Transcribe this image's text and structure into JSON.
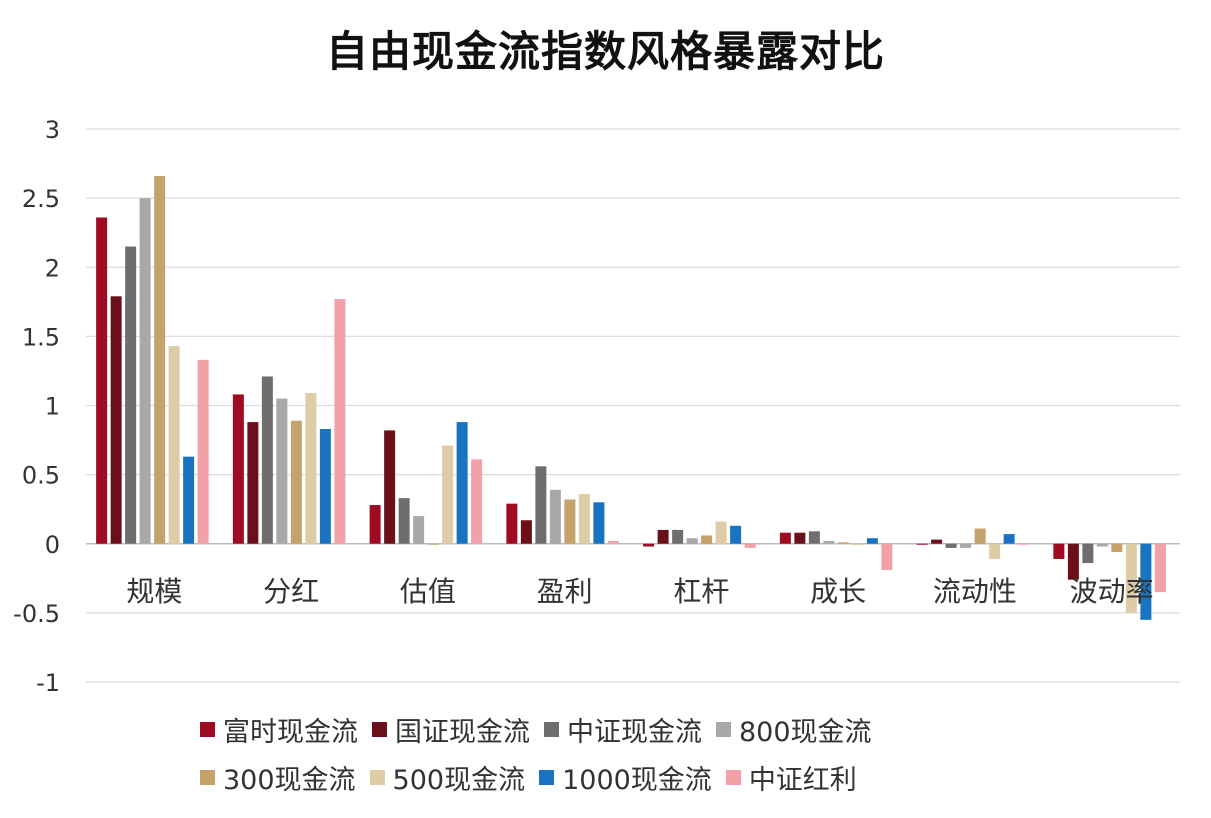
{
  "chart_data": {
    "type": "bar",
    "title": "自由现金流指数风格暴露对比",
    "xlabel": "",
    "ylabel": "",
    "ylim": [
      -1,
      3
    ],
    "yticks": [
      3,
      2.5,
      2,
      1.5,
      1,
      0.5,
      0,
      -0.5,
      -1
    ],
    "ytick_labels": [
      "3",
      "2.5",
      "2",
      "1.5",
      "1",
      "0.5",
      "0",
      "-0.5",
      "-1"
    ],
    "grid": true,
    "legend_position": "bottom",
    "categories": [
      "规模",
      "分红",
      "估值",
      "盈利",
      "杠杆",
      "成长",
      "流动性",
      "波动率"
    ],
    "series": [
      {
        "name": "富时现金流",
        "color": "#9e0b23",
        "values": [
          2.36,
          1.08,
          0.28,
          0.29,
          -0.02,
          0.08,
          0.0,
          -0.11
        ]
      },
      {
        "name": "国证现金流",
        "color": "#6b0f1a",
        "values": [
          1.79,
          0.88,
          0.82,
          0.17,
          0.1,
          0.08,
          0.03,
          -0.26
        ]
      },
      {
        "name": "中证现金流",
        "color": "#6e6e6e",
        "values": [
          2.15,
          1.21,
          0.33,
          0.56,
          0.1,
          0.09,
          -0.03,
          -0.14
        ]
      },
      {
        "name": "800现金流",
        "color": "#a8a8a8",
        "values": [
          2.5,
          1.05,
          0.2,
          0.39,
          0.04,
          0.02,
          -0.03,
          -0.02
        ]
      },
      {
        "name": "300现金流",
        "color": "#c4a26a",
        "values": [
          2.66,
          0.89,
          0.0,
          0.32,
          0.06,
          0.01,
          0.11,
          -0.06
        ]
      },
      {
        "name": "500现金流",
        "color": "#ddcca6",
        "values": [
          1.43,
          1.09,
          0.71,
          0.36,
          0.16,
          -0.01,
          -0.11,
          -0.5
        ]
      },
      {
        "name": "1000现金流",
        "color": "#1a73c0",
        "values": [
          0.63,
          0.83,
          0.88,
          0.3,
          0.13,
          0.04,
          0.07,
          -0.55
        ]
      },
      {
        "name": "中证红利",
        "color": "#f3a1a8",
        "values": [
          1.33,
          1.77,
          0.61,
          0.02,
          -0.03,
          -0.19,
          0.0,
          -0.35
        ]
      }
    ]
  }
}
